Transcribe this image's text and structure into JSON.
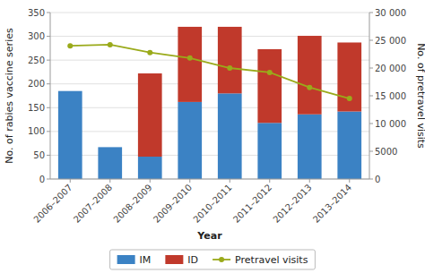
{
  "chart_data": {
    "type": "bar",
    "stacked": true,
    "xlabel": "Year",
    "ylabel": "No. of rabies vaccine series",
    "y2label": "No. of pretravel visits",
    "categories": [
      "2006–2007",
      "2007–2008",
      "2008–2009",
      "2009–2010",
      "2010–2011",
      "2011–2012",
      "2012–2013",
      "2013–2014"
    ],
    "series": [
      {
        "name": "IM",
        "type": "bar",
        "color": "#3b82c4",
        "values": [
          185,
          67,
          47,
          162,
          180,
          118,
          136,
          142
        ]
      },
      {
        "name": "ID",
        "type": "bar",
        "color": "#c0392b",
        "values": [
          0,
          0,
          175,
          158,
          140,
          155,
          165,
          145
        ]
      },
      {
        "name": "Pretravel visits",
        "type": "line",
        "axis": "y2",
        "marker": "circle",
        "color": "#9aaa1a",
        "values": [
          24000,
          24200,
          22800,
          21800,
          20000,
          19200,
          16500,
          14500
        ]
      }
    ],
    "ylim": [
      0,
      350
    ],
    "yticks": [
      0,
      50,
      100,
      150,
      200,
      250,
      300,
      350
    ],
    "y2lim": [
      0,
      30000
    ],
    "y2ticks": [
      0,
      5000,
      {
        "value": 10000,
        "label": "10 000"
      },
      {
        "value": 15000,
        "label": "15 000"
      },
      {
        "value": 20000,
        "label": "20 000"
      },
      {
        "value": 25000,
        "label": "25 000"
      },
      {
        "value": 30000,
        "label": "30 000"
      }
    ],
    "grid": true,
    "legend": "bottom"
  }
}
